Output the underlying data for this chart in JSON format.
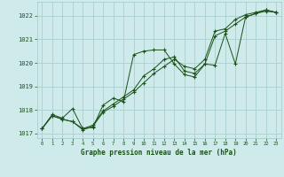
{
  "title": "Graphe pression niveau de la mer (hPa)",
  "bg_color": "#ceeaea",
  "grid_color": "#aacece",
  "line_color": "#1a5218",
  "xlim": [
    -0.5,
    23.5
  ],
  "ylim": [
    1016.8,
    1022.6
  ],
  "yticks": [
    1017,
    1018,
    1019,
    1020,
    1021,
    1022
  ],
  "xtick_labels": [
    "0",
    "1",
    "2",
    "3",
    "4",
    "5",
    "6",
    "7",
    "8",
    "9",
    "10",
    "11",
    "12",
    "13",
    "14",
    "15",
    "16",
    "17",
    "18",
    "19",
    "20",
    "21",
    "22",
    "23"
  ],
  "xticks": [
    0,
    1,
    2,
    3,
    4,
    5,
    6,
    7,
    8,
    9,
    10,
    11,
    12,
    13,
    14,
    15,
    16,
    17,
    18,
    19,
    20,
    21,
    22,
    23
  ],
  "series": [
    [
      1017.2,
      1017.8,
      1017.65,
      1018.05,
      1017.2,
      1017.25,
      1018.2,
      1018.5,
      1018.35,
      1020.35,
      1020.5,
      1020.55,
      1020.55,
      1019.95,
      1019.5,
      1019.4,
      1019.95,
      1019.9,
      1021.25,
      1019.95,
      1021.95,
      1022.1,
      1022.2,
      1022.15
    ],
    [
      1017.2,
      1017.75,
      1017.6,
      1017.5,
      1017.2,
      1017.35,
      1017.95,
      1018.25,
      1018.55,
      1018.85,
      1019.45,
      1019.75,
      1020.15,
      1020.25,
      1019.65,
      1019.55,
      1019.95,
      1021.15,
      1021.35,
      1021.65,
      1021.95,
      1022.1,
      1022.25,
      1022.15
    ],
    [
      1017.2,
      1017.75,
      1017.6,
      1017.5,
      1017.15,
      1017.3,
      1017.9,
      1018.15,
      1018.45,
      1018.75,
      1019.15,
      1019.55,
      1019.85,
      1020.15,
      1019.85,
      1019.75,
      1020.15,
      1021.35,
      1021.45,
      1021.85,
      1022.05,
      1022.15,
      1022.25,
      1022.15
    ]
  ]
}
